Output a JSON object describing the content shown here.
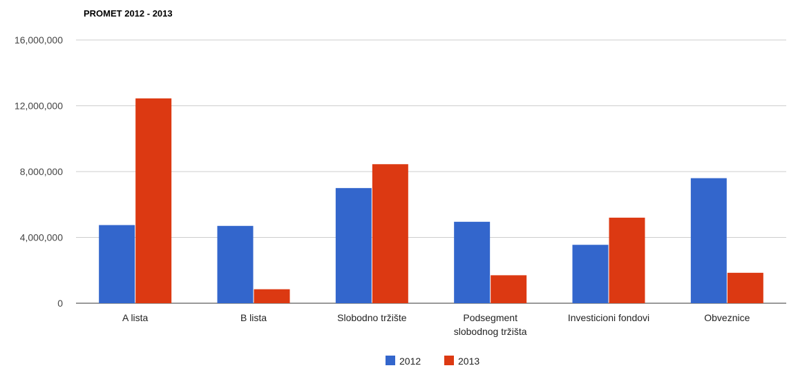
{
  "chart_data": {
    "type": "bar",
    "title": "PROMET 2012 - 2013",
    "xlabel": "",
    "ylabel": "",
    "categories": [
      [
        "A lista"
      ],
      [
        "B lista"
      ],
      [
        "Slobodno tržište"
      ],
      [
        "Podsegment",
        "slobodnog tržišta"
      ],
      [
        "Investicioni fondovi"
      ],
      [
        "Obveznice"
      ]
    ],
    "series": [
      {
        "name": "2012",
        "color": "#3366cc",
        "values": [
          4750000,
          4700000,
          7000000,
          4950000,
          3550000,
          7600000
        ]
      },
      {
        "name": "2013",
        "color": "#dc3912",
        "values": [
          12450000,
          850000,
          8450000,
          1700000,
          5200000,
          1850000
        ]
      }
    ],
    "ylim": [
      0,
      16000000
    ],
    "yticks": [
      0,
      4000000,
      8000000,
      12000000,
      16000000
    ],
    "ytick_labels": [
      "0",
      "4,000,000",
      "8,000,000",
      "12,000,000",
      "16,000,000"
    ],
    "grid": true,
    "legend_position": "bottom"
  }
}
